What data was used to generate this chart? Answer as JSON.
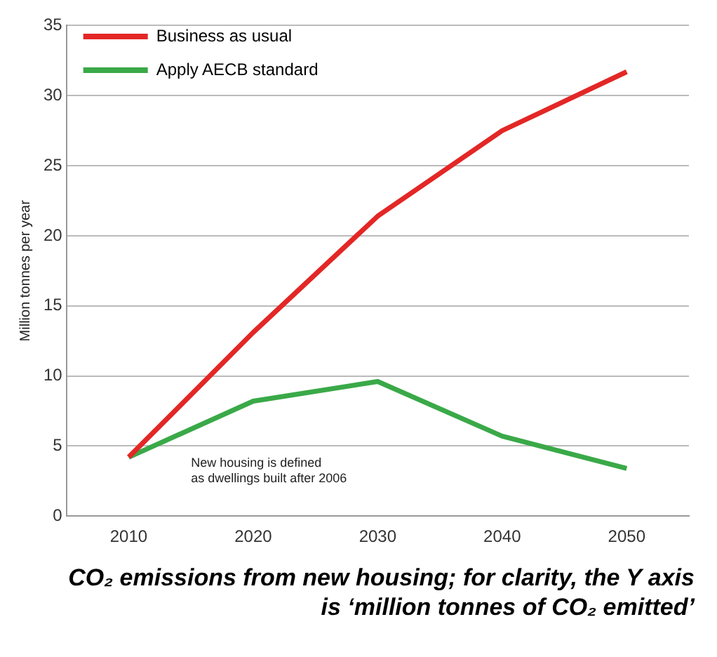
{
  "chart_data": {
    "type": "line",
    "title": "CO₂ emissions from new housing; for clarity, the Y axis is ‘million tonnes of CO₂ emitted’",
    "ylabel": "Million tonnes per year",
    "x": [
      2010,
      2020,
      2030,
      2040,
      2050
    ],
    "series": [
      {
        "name": "Business as usual",
        "color": "#e32726",
        "values": [
          4.2,
          13.1,
          21.4,
          27.5,
          31.7
        ]
      },
      {
        "name": "Apply AECB standard",
        "color": "#3aa948",
        "values": [
          4.2,
          8.2,
          9.6,
          5.7,
          3.4
        ]
      }
    ],
    "xlim": [
      2005,
      2055
    ],
    "xticks": [
      2010,
      2020,
      2030,
      2040,
      2050
    ],
    "ylim": [
      0,
      35
    ],
    "yticks": [
      0,
      5,
      10,
      15,
      20,
      25,
      30,
      35
    ],
    "grid": "y",
    "legend": "top left",
    "marker": "none",
    "line_style": "solid",
    "annotations": [
      "New housing is defined as dwellings built after 2006"
    ]
  }
}
